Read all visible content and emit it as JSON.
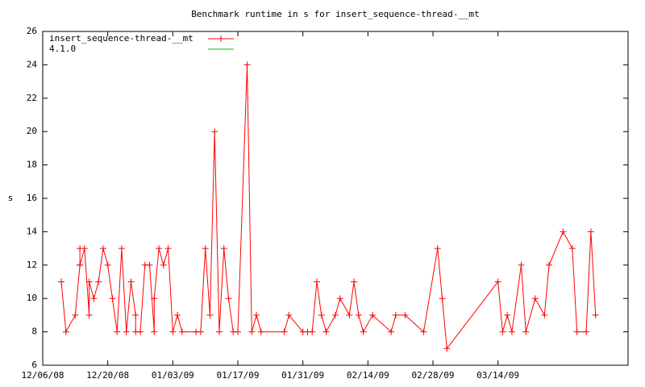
{
  "chart_data": {
    "type": "line",
    "title": "Benchmark runtime in s for insert_sequence-thread-__mt",
    "ylabel": "s",
    "x": [
      "12/10/08",
      "12/11/08",
      "12/13/08",
      "12/14/08",
      "12/14/08",
      "12/14/08",
      "12/15/08",
      "12/16/08",
      "12/16/08",
      "12/17/08",
      "12/18/08",
      "12/19/08",
      "12/20/08",
      "12/21/08",
      "12/22/08",
      "12/23/08",
      "12/24/08",
      "12/25/08",
      "12/26/08",
      "12/26/08",
      "12/27/08",
      "12/28/08",
      "12/29/08",
      "12/30/08",
      "12/30/08",
      "12/31/08",
      "01/01/09",
      "01/02/09",
      "01/03/09",
      "01/04/09",
      "01/05/09",
      "01/08/09",
      "01/09/09",
      "01/10/09",
      "01/11/09",
      "01/12/09",
      "01/13/09",
      "01/14/09",
      "01/15/09",
      "01/16/09",
      "01/17/09",
      "01/19/09",
      "01/20/09",
      "01/21/09",
      "01/22/09",
      "01/27/09",
      "01/28/09",
      "01/31/09",
      "02/01/09",
      "02/02/09",
      "02/03/09",
      "02/04/09",
      "02/05/09",
      "02/07/09",
      "02/08/09",
      "02/10/09",
      "02/11/09",
      "02/12/09",
      "02/13/09",
      "02/15/09",
      "02/19/09",
      "02/20/09",
      "02/22/09",
      "02/26/09",
      "03/01/09",
      "03/02/09",
      "03/03/09",
      "03/14/09",
      "03/15/09",
      "03/16/09",
      "03/17/09",
      "03/19/09",
      "03/20/09",
      "03/22/09",
      "03/24/09",
      "03/25/09",
      "03/28/09",
      "03/30/09",
      "03/31/09",
      "04/02/09",
      "04/03/09",
      "04/04/09"
    ],
    "series": [
      {
        "name": "insert_sequence-thread-__mt",
        "color": "#ff0000",
        "marker": "+",
        "values": [
          11,
          8,
          9,
          12,
          13,
          12,
          13,
          9,
          11,
          10,
          11,
          13,
          12,
          10,
          8,
          13,
          8,
          11,
          9,
          8,
          8,
          12,
          12,
          8,
          10,
          13,
          12,
          13,
          8,
          9,
          8,
          8,
          8,
          13,
          9,
          20,
          8,
          13,
          10,
          8,
          8,
          24,
          8,
          9,
          8,
          8,
          9,
          8,
          8,
          8,
          11,
          9,
          8,
          9,
          10,
          9,
          11,
          9,
          8,
          9,
          8,
          9,
          9,
          8,
          13,
          10,
          7,
          11,
          8,
          9,
          8,
          12,
          8,
          10,
          9,
          12,
          14,
          13,
          8,
          8,
          14,
          9
        ]
      },
      {
        "name": "4.1.0",
        "color": "#00c000"
      }
    ],
    "xlim": [
      "12/06/08",
      "04/11/09"
    ],
    "xticks": [
      "12/06/08",
      "12/20/08",
      "01/03/09",
      "01/17/09",
      "01/31/09",
      "02/14/09",
      "02/28/09",
      "03/14/09"
    ],
    "ylim": [
      6,
      26
    ],
    "yticks": [
      6,
      8,
      10,
      12,
      14,
      16,
      18,
      20,
      22,
      24,
      26
    ],
    "grid": false,
    "legend": "top-left"
  }
}
